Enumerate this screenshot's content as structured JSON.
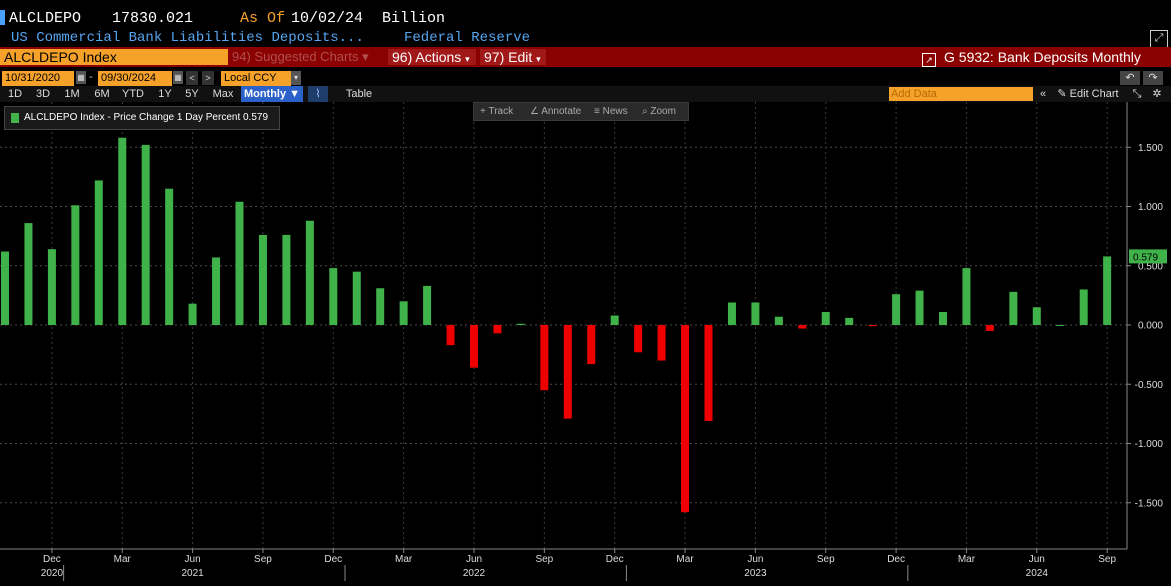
{
  "header": {
    "ticker": "ALCLDEPO",
    "value": "17830.021",
    "asof_label": "As Of",
    "asof_date": "10/02/24",
    "unit": "Billion",
    "description": "US Commercial Bank Liabilities Deposits...",
    "source": "Federal Reserve"
  },
  "toolbar": {
    "index_name": "ALCLDEPO Index",
    "suggested_charts": "94) Suggested Charts",
    "actions": "96) Actions",
    "edit": "97) Edit",
    "chart_title": "G 5932: Bank Deposits Monthly"
  },
  "dates": {
    "start": "10/31/2020",
    "end": "09/30/2024",
    "currency": "Local CCY"
  },
  "periods": [
    "1D",
    "3D",
    "1M",
    "6M",
    "YTD",
    "1Y",
    "5Y",
    "Max"
  ],
  "frequency": "Monthly",
  "table_label": "Table",
  "add_data_placeholder": "Add Data",
  "edit_chart": "Edit Chart",
  "float_tools": [
    "Track",
    "Annotate",
    "News",
    "Zoom"
  ],
  "legend_label": "ALCLDEPO Index - Price Change 1 Day Percent 0.579",
  "last_value_label": "0.579",
  "colors": {
    "positive": "#3fb24a",
    "negative": "#ee0000",
    "accent": "#f5a12a",
    "bar_red": "#8b0000"
  },
  "chart_data": {
    "type": "bar",
    "series": [
      {
        "name": "ALCLDEPO Index - Price Change 1 Day Percent",
        "x": [
          "2020-10",
          "2020-11",
          "2020-12",
          "2021-01",
          "2021-02",
          "2021-03",
          "2021-04",
          "2021-05",
          "2021-06",
          "2021-07",
          "2021-08",
          "2021-09",
          "2021-10",
          "2021-11",
          "2021-12",
          "2022-01",
          "2022-02",
          "2022-03",
          "2022-04",
          "2022-05",
          "2022-06",
          "2022-07",
          "2022-08",
          "2022-09",
          "2022-10",
          "2022-11",
          "2022-12",
          "2023-01",
          "2023-02",
          "2023-03",
          "2023-04",
          "2023-05",
          "2023-06",
          "2023-07",
          "2023-08",
          "2023-09",
          "2023-10",
          "2023-11",
          "2023-12",
          "2024-01",
          "2024-02",
          "2024-03",
          "2024-04",
          "2024-05",
          "2024-06",
          "2024-07",
          "2024-08",
          "2024-09"
        ],
        "values": [
          0.62,
          0.86,
          0.64,
          1.01,
          1.22,
          1.58,
          1.52,
          1.15,
          0.18,
          0.57,
          1.04,
          0.76,
          0.76,
          0.88,
          0.48,
          0.45,
          0.31,
          0.2,
          0.33,
          -0.17,
          -0.36,
          -0.07,
          0.01,
          -0.55,
          -0.79,
          -0.33,
          0.08,
          -0.23,
          -0.3,
          -1.58,
          -0.81,
          0.19,
          0.19,
          0.07,
          -0.03,
          0.11,
          0.06,
          -0.01,
          0.26,
          0.29,
          0.11,
          0.48,
          -0.05,
          0.28,
          0.15,
          0.0,
          0.3,
          0.579
        ]
      }
    ],
    "ylim": [
      -1.85,
      1.85
    ],
    "yticks": [
      -1.5,
      -1.0,
      -0.5,
      0.0,
      0.5,
      1.0,
      1.5
    ],
    "ytick_labels": [
      "-1.500",
      "-1.000",
      "-0.500",
      "0.000",
      "0.500",
      "1.000",
      "1.500"
    ],
    "month_ticks": [
      {
        "label": "Dec",
        "x": "2020-12"
      },
      {
        "label": "Mar",
        "x": "2021-03"
      },
      {
        "label": "Jun",
        "x": "2021-06"
      },
      {
        "label": "Sep",
        "x": "2021-09"
      },
      {
        "label": "Dec",
        "x": "2021-12"
      },
      {
        "label": "Mar",
        "x": "2022-03"
      },
      {
        "label": "Jun",
        "x": "2022-06"
      },
      {
        "label": "Sep",
        "x": "2022-09"
      },
      {
        "label": "Dec",
        "x": "2022-12"
      },
      {
        "label": "Mar",
        "x": "2023-03"
      },
      {
        "label": "Jun",
        "x": "2023-06"
      },
      {
        "label": "Sep",
        "x": "2023-09"
      },
      {
        "label": "Dec",
        "x": "2023-12"
      },
      {
        "label": "Mar",
        "x": "2024-03"
      },
      {
        "label": "Jun",
        "x": "2024-06"
      },
      {
        "label": "Sep",
        "x": "2024-09"
      }
    ],
    "year_ticks": [
      {
        "label": "2020",
        "x": "2020-12"
      },
      {
        "label": "2021",
        "x": "2021-06"
      },
      {
        "label": "2022",
        "x": "2022-06"
      },
      {
        "label": "2023",
        "x": "2023-06"
      },
      {
        "label": "2024",
        "x": "2024-06"
      }
    ],
    "grid": true,
    "legend": "top-left"
  }
}
